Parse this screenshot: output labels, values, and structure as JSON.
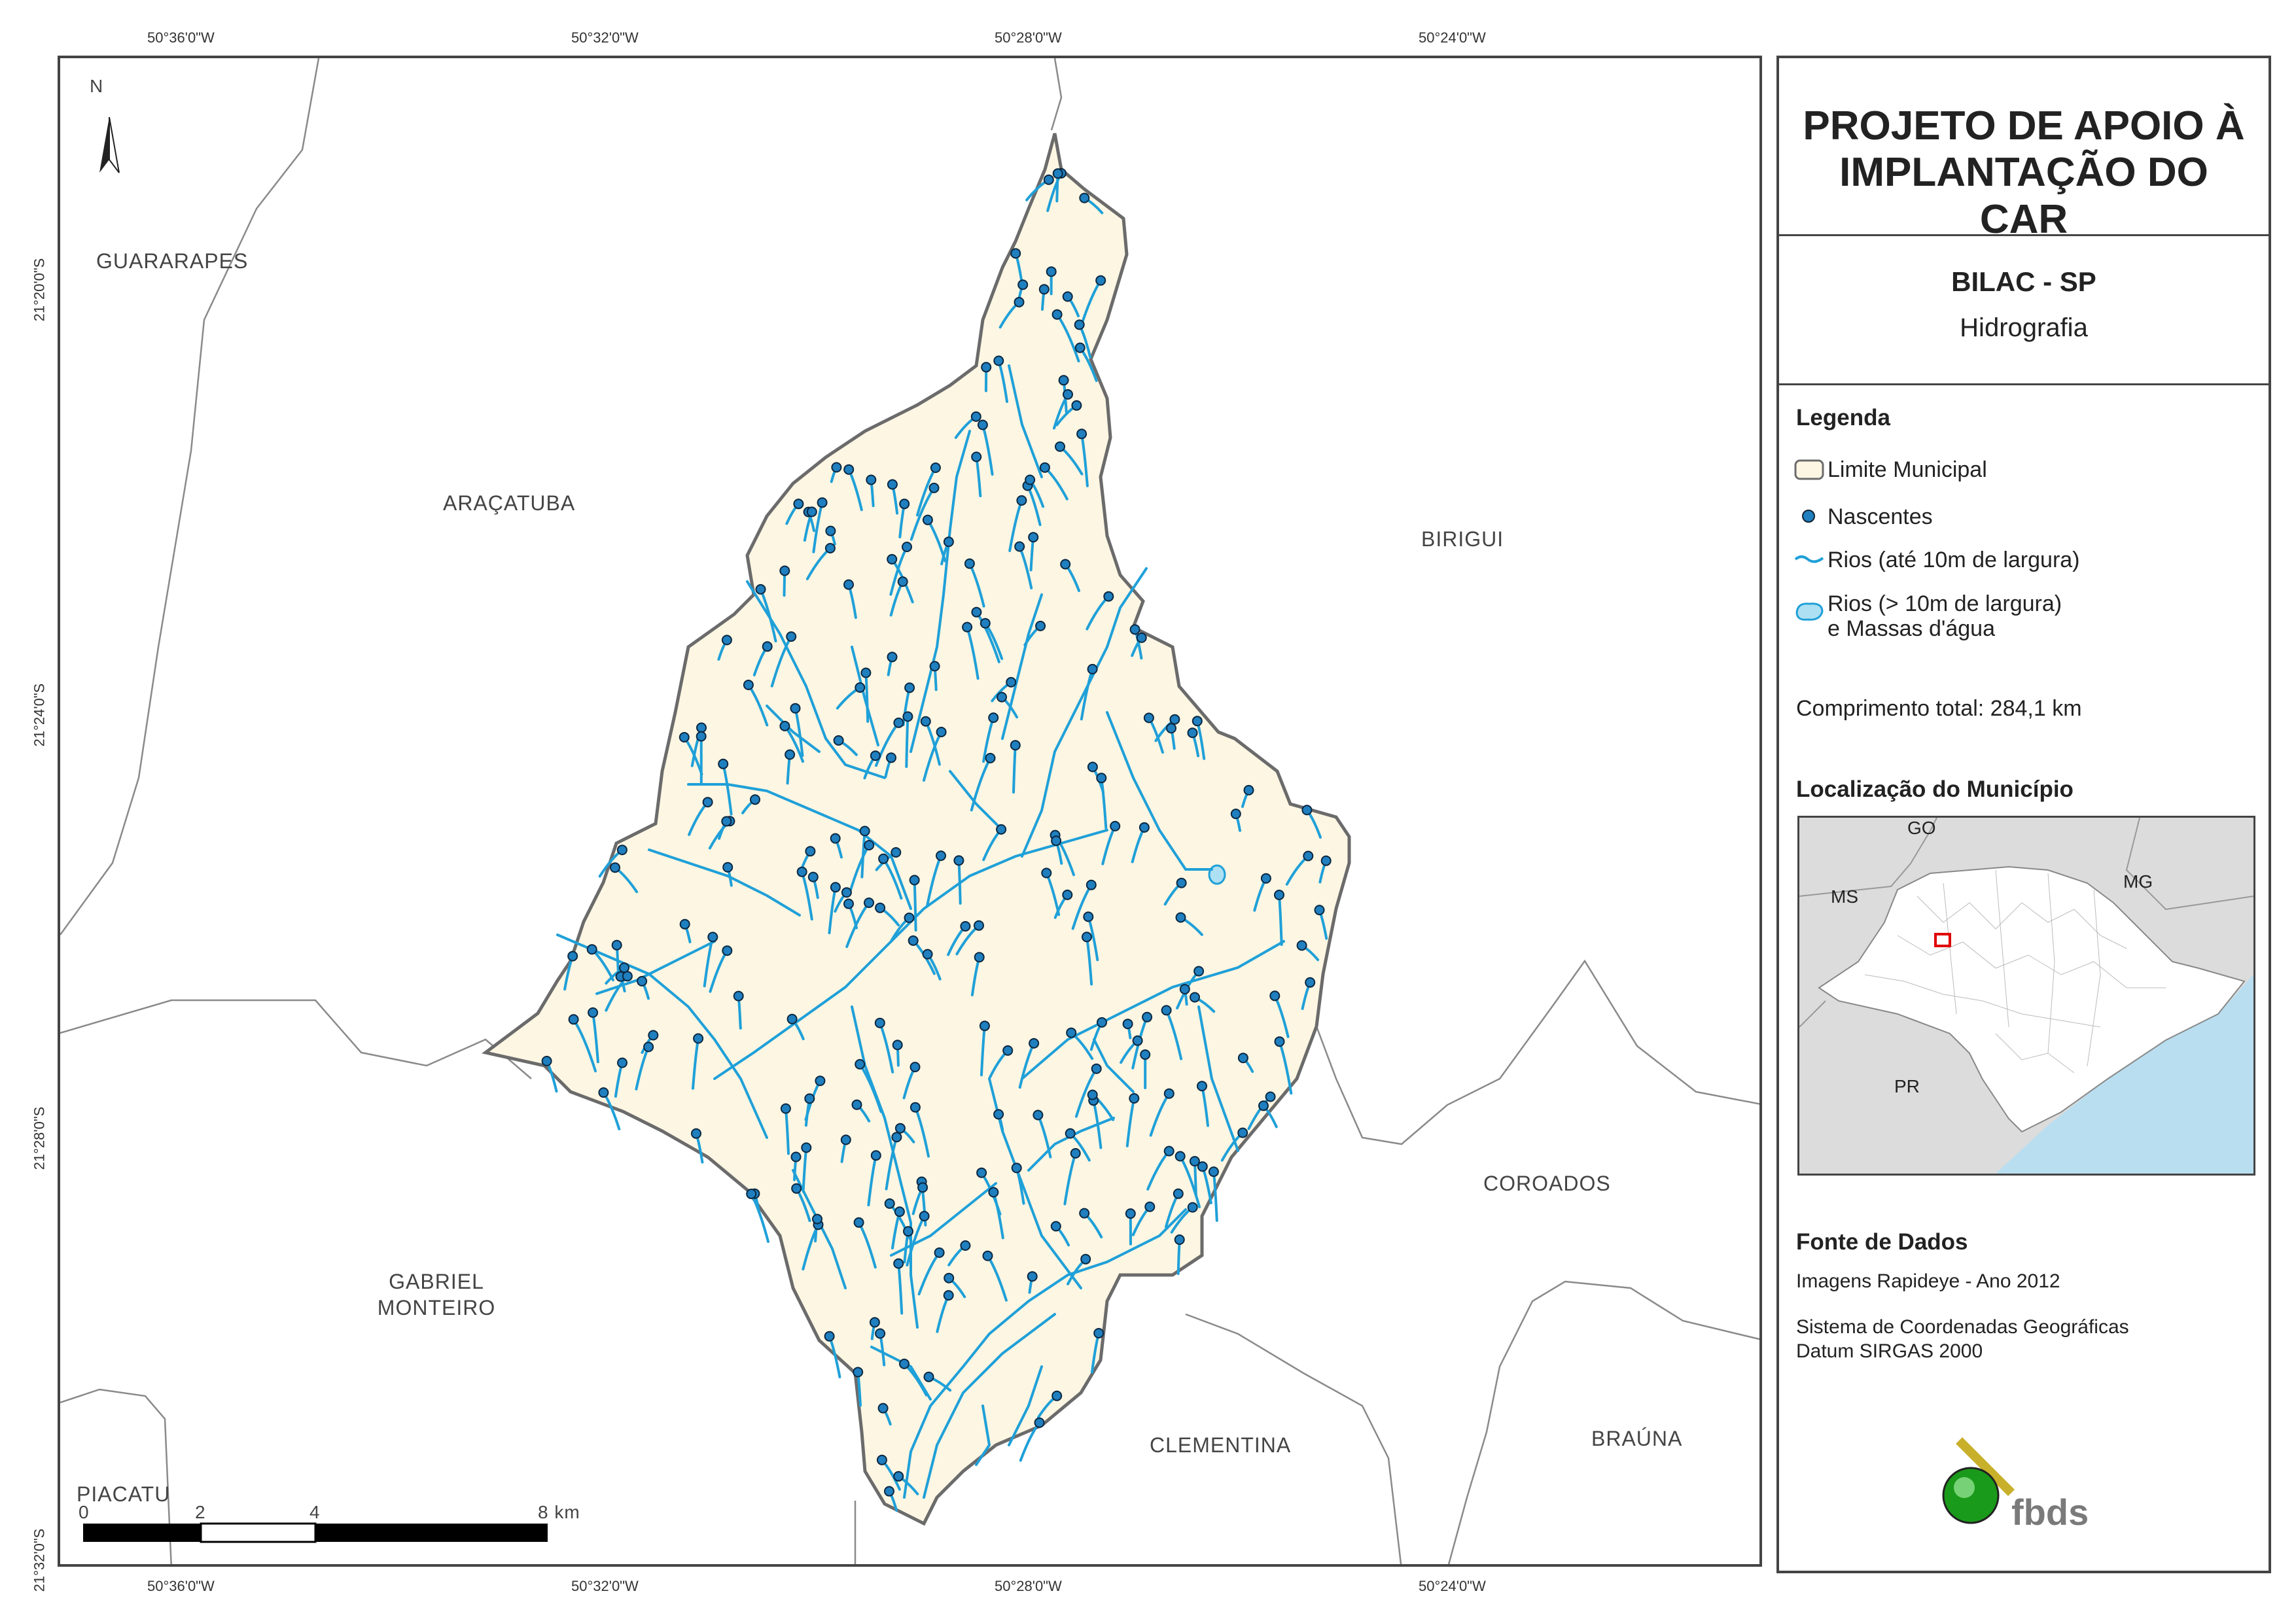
{
  "title": "PROJETO DE APOIO À IMPLANTAÇÃO DO CAR",
  "place": "BILAC - SP",
  "theme": "Hidrografia",
  "legend": {
    "heading": "Legenda",
    "items": [
      {
        "label": "Limite Municipal",
        "icon": "municipal-boundary-icon"
      },
      {
        "label": "Nascentes",
        "icon": "spring-point-icon",
        "color": "#1f7fbf"
      },
      {
        "label": "Rios (até 10m de largura)",
        "icon": "river-line-icon",
        "color": "#1fa0d8"
      },
      {
        "label": "Rios (> 10m de largura)",
        "label2": "e Massas d'água",
        "icon": "water-body-icon",
        "color": "#aee0f3"
      }
    ],
    "total_length": "Comprimento total: 284,1 km"
  },
  "location": {
    "heading": "Localização do Município",
    "labels": [
      "GO",
      "MS",
      "MG",
      "PR"
    ]
  },
  "sources": {
    "heading": "Fonte de Dados",
    "line1": "Imagens Rapideye - Ano 2012",
    "line2": "Sistema de Coordenadas Geográficas",
    "line3": "Datum SIRGAS 2000"
  },
  "logo_text": "fbds",
  "north": "N",
  "coords": {
    "top": [
      "50°36'0\"W",
      "50°32'0\"W",
      "50°28'0\"W",
      "50°24'0\"W"
    ],
    "bottom": [
      "50°36'0\"W",
      "50°32'0\"W",
      "50°28'0\"W",
      "50°24'0\"W"
    ],
    "left": [
      "21°20'0\"S",
      "21°24'0\"S",
      "21°28'0\"S",
      "21°32'0\"S"
    ]
  },
  "municipalities": [
    "GUARARAPES",
    "ARAÇATUBA",
    "BIRIGUI",
    "COROADOS",
    "GABRIEL MONTEIRO",
    "CLEMENTINA",
    "BRAÚNA",
    "PIACATU"
  ],
  "scale": {
    "ticks": [
      "0",
      "2",
      "4",
      "8 km"
    ]
  },
  "colors": {
    "municipality_fill": "#fdf6e3",
    "river": "#1fa0d8",
    "spring": "#1f7fbf",
    "ocean": "#b9def0"
  }
}
